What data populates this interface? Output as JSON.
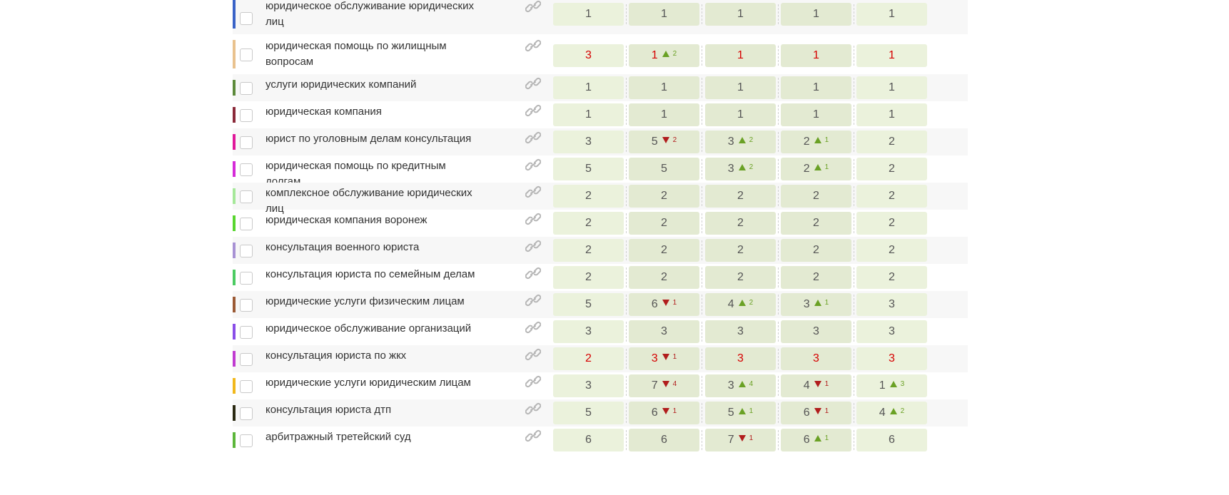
{
  "rows": [
    {
      "name": "юридическое обслуживание юридических лиц",
      "marker_color": "#3a63c7",
      "cells": [
        {
          "value": "1"
        },
        {
          "value": "1"
        },
        {
          "value": "1"
        },
        {
          "value": "1"
        },
        {
          "value": "1"
        }
      ]
    },
    {
      "name": "юридическая помощь по жилищным вопросам",
      "marker_color": "#e9c28e",
      "cells": [
        {
          "value": "3",
          "red": true
        },
        {
          "value": "1",
          "red": true,
          "delta": {
            "dir": "up",
            "value": "2"
          }
        },
        {
          "value": "1",
          "red": true
        },
        {
          "value": "1",
          "red": true
        },
        {
          "value": "1",
          "red": true
        }
      ]
    },
    {
      "name": "услуги юридических компаний",
      "marker_color": "#5d8a3b",
      "cells": [
        {
          "value": "1"
        },
        {
          "value": "1"
        },
        {
          "value": "1"
        },
        {
          "value": "1"
        },
        {
          "value": "1"
        }
      ]
    },
    {
      "name": "юридическая компания",
      "marker_color": "#8b2a3a",
      "cells": [
        {
          "value": "1"
        },
        {
          "value": "1"
        },
        {
          "value": "1"
        },
        {
          "value": "1"
        },
        {
          "value": "1"
        }
      ]
    },
    {
      "name": "юрист по уголовным делам консультация",
      "marker_color": "#e0189a",
      "cells": [
        {
          "value": "3"
        },
        {
          "value": "5",
          "delta": {
            "dir": "down",
            "value": "2"
          }
        },
        {
          "value": "3",
          "delta": {
            "dir": "up",
            "value": "2"
          }
        },
        {
          "value": "2",
          "delta": {
            "dir": "up",
            "value": "1"
          }
        },
        {
          "value": "2"
        }
      ]
    },
    {
      "name": "юридическая помощь по кредитным долгам",
      "marker_color": "#d52bd8",
      "cells": [
        {
          "value": "5"
        },
        {
          "value": "5"
        },
        {
          "value": "3",
          "delta": {
            "dir": "up",
            "value": "2"
          }
        },
        {
          "value": "2",
          "delta": {
            "dir": "up",
            "value": "1"
          }
        },
        {
          "value": "2"
        }
      ]
    },
    {
      "name": "комплексное обслуживание юридических лиц",
      "marker_color": "#a6e89a",
      "cells": [
        {
          "value": "2"
        },
        {
          "value": "2"
        },
        {
          "value": "2"
        },
        {
          "value": "2"
        },
        {
          "value": "2"
        }
      ]
    },
    {
      "name": "юридическая компания воронеж",
      "marker_color": "#58d52f",
      "cells": [
        {
          "value": "2"
        },
        {
          "value": "2"
        },
        {
          "value": "2"
        },
        {
          "value": "2"
        },
        {
          "value": "2"
        }
      ]
    },
    {
      "name": "консультация военного юриста",
      "marker_color": "#a892d4",
      "cells": [
        {
          "value": "2"
        },
        {
          "value": "2"
        },
        {
          "value": "2"
        },
        {
          "value": "2"
        },
        {
          "value": "2"
        }
      ]
    },
    {
      "name": "консультация юриста по семейным делам",
      "marker_color": "#4ccb62",
      "cells": [
        {
          "value": "2"
        },
        {
          "value": "2"
        },
        {
          "value": "2"
        },
        {
          "value": "2"
        },
        {
          "value": "2"
        }
      ]
    },
    {
      "name": "юридические услуги физическим лицам",
      "marker_color": "#9b5a35",
      "cells": [
        {
          "value": "5"
        },
        {
          "value": "6",
          "delta": {
            "dir": "down",
            "value": "1"
          }
        },
        {
          "value": "4",
          "delta": {
            "dir": "up",
            "value": "2"
          }
        },
        {
          "value": "3",
          "delta": {
            "dir": "up",
            "value": "1"
          }
        },
        {
          "value": "3"
        }
      ]
    },
    {
      "name": "юридическое обслуживание организаций",
      "marker_color": "#8a4ee8",
      "cells": [
        {
          "value": "3"
        },
        {
          "value": "3"
        },
        {
          "value": "3"
        },
        {
          "value": "3"
        },
        {
          "value": "3"
        }
      ]
    },
    {
      "name": "консультация юриста по жкх",
      "marker_color": "#c03bd1",
      "cells": [
        {
          "value": "2",
          "red": true
        },
        {
          "value": "3",
          "red": true,
          "delta": {
            "dir": "down",
            "value": "1"
          }
        },
        {
          "value": "3",
          "red": true
        },
        {
          "value": "3",
          "red": true
        },
        {
          "value": "3",
          "red": true
        }
      ]
    },
    {
      "name": "юридические услуги юридическим лицам",
      "marker_color": "#f1b81c",
      "cells": [
        {
          "value": "3"
        },
        {
          "value": "7",
          "delta": {
            "dir": "down",
            "value": "4"
          }
        },
        {
          "value": "3",
          "delta": {
            "dir": "up",
            "value": "4"
          }
        },
        {
          "value": "4",
          "delta": {
            "dir": "down",
            "value": "1"
          }
        },
        {
          "value": "1",
          "delta": {
            "dir": "up",
            "value": "3"
          }
        }
      ]
    },
    {
      "name": "консультация юриста дтп",
      "marker_color": "#2b2a13",
      "cells": [
        {
          "value": "5"
        },
        {
          "value": "6",
          "delta": {
            "dir": "down",
            "value": "1"
          }
        },
        {
          "value": "5",
          "delta": {
            "dir": "up",
            "value": "1"
          }
        },
        {
          "value": "6",
          "delta": {
            "dir": "down",
            "value": "1"
          }
        },
        {
          "value": "4",
          "delta": {
            "dir": "up",
            "value": "2"
          }
        }
      ]
    },
    {
      "name": "арбитражный третейский суд",
      "marker_color": "#5cb63a",
      "cells": [
        {
          "value": "6"
        },
        {
          "value": "6"
        },
        {
          "value": "7",
          "delta": {
            "dir": "down",
            "value": "1"
          }
        },
        {
          "value": "6",
          "delta": {
            "dir": "up",
            "value": "1"
          }
        },
        {
          "value": "6"
        }
      ]
    }
  ]
}
